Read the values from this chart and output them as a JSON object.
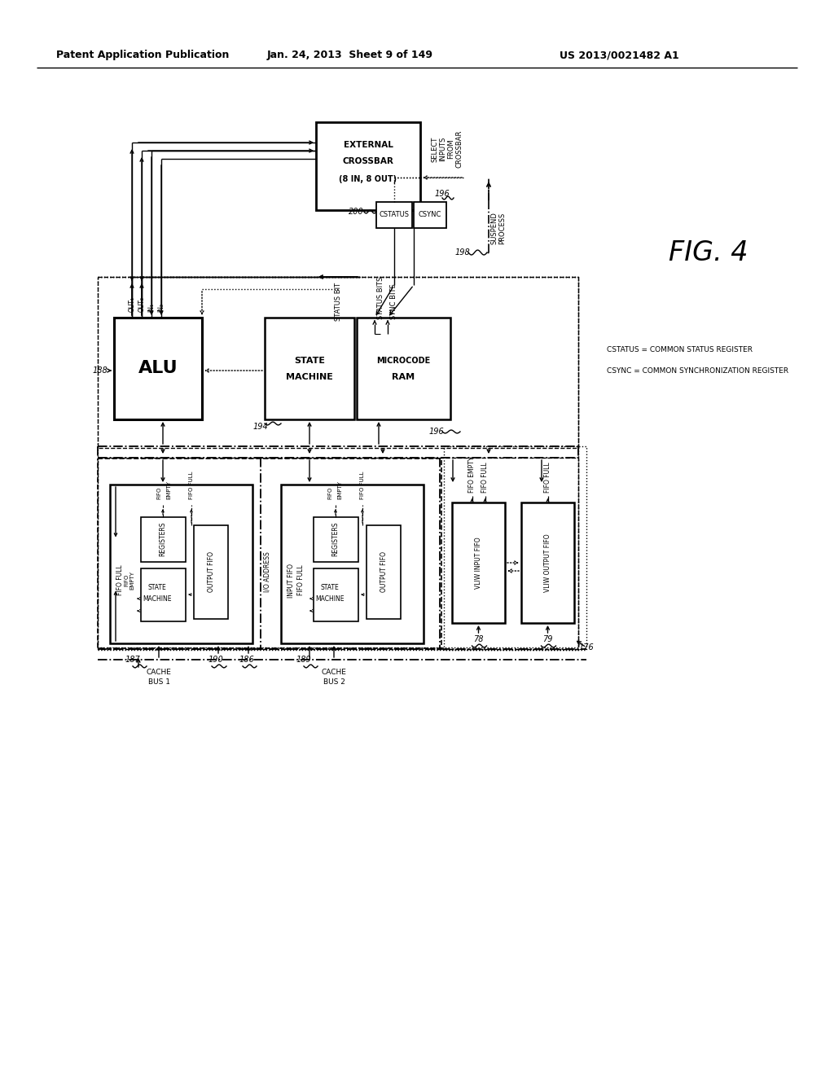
{
  "header_left": "Patent Application Publication",
  "header_mid": "Jan. 24, 2013  Sheet 9 of 149",
  "header_right": "US 2013/0021482 A1",
  "fig_label": "FIG. 4",
  "bg": "#ffffff",
  "anno_cstatus": "CSTATUS = COMMON STATUS REGISTER",
  "anno_csync": "CSYNC = COMMON SYNCHRONIZATION REGISTER"
}
